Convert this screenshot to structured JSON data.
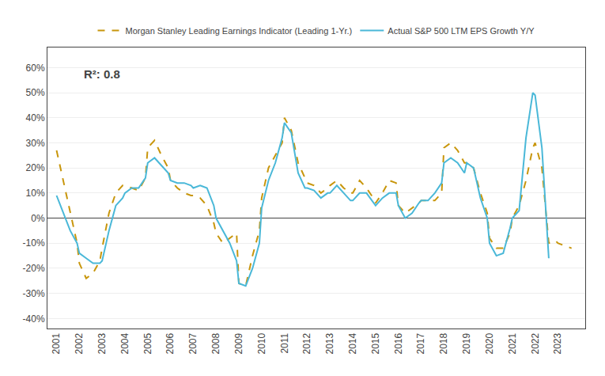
{
  "chart_data": {
    "type": "line",
    "annotation": "R²: 0.8",
    "grid": "y",
    "legend": "top",
    "xlim": [
      2000.6,
      2024.2
    ],
    "xticks": [
      2001,
      2002,
      2003,
      2004,
      2005,
      2006,
      2007,
      2008,
      2009,
      2010,
      2011,
      2012,
      2013,
      2014,
      2015,
      2016,
      2017,
      2018,
      2019,
      2020,
      2021,
      2022,
      2023
    ],
    "ylim": [
      -0.44,
      0.68
    ],
    "yticks": [
      {
        "value": -0.4,
        "label": "-40%"
      },
      {
        "value": -0.3,
        "label": "-30%"
      },
      {
        "value": -0.2,
        "label": "-20%"
      },
      {
        "value": -0.1,
        "label": "-10%"
      },
      {
        "value": 0.0,
        "label": "0%"
      },
      {
        "value": 0.1,
        "label": "10%"
      },
      {
        "value": 0.2,
        "label": "20%"
      },
      {
        "value": 0.3,
        "label": "30%"
      },
      {
        "value": 0.4,
        "label": "40%"
      },
      {
        "value": 0.5,
        "label": "50%"
      },
      {
        "value": 0.6,
        "label": "60%"
      }
    ],
    "series": [
      {
        "name": "Morgan Stanley Leading Earnings Indicator (Leading 1-Yr.)",
        "color": "#c8960c",
        "line_style": "dashed",
        "x": [
          2001.0,
          2001.3,
          2001.6,
          2001.9,
          2002.0,
          2002.3,
          2002.6,
          2002.9,
          2003.0,
          2003.3,
          2003.6,
          2003.9,
          2004.0,
          2004.3,
          2004.6,
          2004.9,
          2005.0,
          2005.3,
          2005.6,
          2005.9,
          2006.0,
          2006.3,
          2006.6,
          2006.9,
          2007.0,
          2007.3,
          2007.6,
          2007.9,
          2008.0,
          2008.3,
          2008.6,
          2008.9,
          2009.0,
          2009.3,
          2009.6,
          2009.9,
          2010.0,
          2010.3,
          2010.6,
          2010.9,
          2011.0,
          2011.3,
          2011.6,
          2011.9,
          2012.0,
          2012.3,
          2012.6,
          2012.9,
          2013.0,
          2013.3,
          2013.6,
          2013.9,
          2014.0,
          2014.3,
          2014.6,
          2014.9,
          2015.0,
          2015.3,
          2015.6,
          2015.9,
          2016.0,
          2016.3,
          2016.6,
          2016.9,
          2017.0,
          2017.3,
          2017.6,
          2017.9,
          2018.0,
          2018.3,
          2018.6,
          2018.9,
          2019.0,
          2019.3,
          2019.6,
          2019.9,
          2020.0,
          2020.3,
          2020.6,
          2020.9,
          2021.0,
          2021.3,
          2021.6,
          2021.9,
          2022.0,
          2022.3,
          2022.6,
          2022.9,
          2023.0,
          2023.3,
          2023.6
        ],
        "values": [
          0.27,
          0.15,
          0.02,
          -0.1,
          -0.18,
          -0.24,
          -0.22,
          -0.17,
          -0.12,
          0.02,
          0.1,
          0.13,
          0.13,
          0.12,
          0.11,
          0.16,
          0.28,
          0.31,
          0.25,
          0.2,
          0.15,
          0.12,
          0.1,
          0.09,
          0.09,
          0.08,
          0.05,
          -0.02,
          -0.06,
          -0.1,
          -0.08,
          -0.06,
          -0.26,
          -0.27,
          -0.15,
          -0.05,
          0.08,
          0.2,
          0.25,
          0.3,
          0.4,
          0.35,
          0.22,
          0.16,
          0.14,
          0.13,
          0.1,
          0.12,
          0.13,
          0.15,
          0.12,
          0.1,
          0.1,
          0.15,
          0.12,
          0.08,
          0.06,
          0.1,
          0.15,
          0.14,
          0.05,
          0.02,
          0.04,
          0.06,
          0.07,
          0.07,
          0.07,
          0.1,
          0.28,
          0.3,
          0.27,
          0.22,
          0.22,
          0.2,
          0.1,
          0.02,
          -0.08,
          -0.12,
          -0.12,
          -0.06,
          0.0,
          0.05,
          0.15,
          0.28,
          0.3,
          0.2,
          -0.1,
          -0.09,
          -0.1,
          -0.11,
          -0.12
        ]
      },
      {
        "name": "Actual S&P 500 LTM EPS Growth Y/Y",
        "color": "#4ab8d8",
        "line_style": "solid",
        "x": [
          2001.0,
          2001.3,
          2001.6,
          2001.9,
          2002.0,
          2002.3,
          2002.6,
          2002.9,
          2003.0,
          2003.3,
          2003.6,
          2003.9,
          2004.0,
          2004.3,
          2004.6,
          2004.9,
          2005.0,
          2005.3,
          2005.6,
          2005.9,
          2006.0,
          2006.3,
          2006.6,
          2006.9,
          2007.0,
          2007.3,
          2007.6,
          2007.9,
          2008.0,
          2008.3,
          2008.6,
          2008.9,
          2009.0,
          2009.3,
          2009.6,
          2009.9,
          2010.0,
          2010.3,
          2010.6,
          2010.9,
          2011.0,
          2011.3,
          2011.6,
          2011.9,
          2012.0,
          2012.3,
          2012.6,
          2012.9,
          2013.0,
          2013.3,
          2013.6,
          2013.9,
          2014.0,
          2014.3,
          2014.6,
          2014.9,
          2015.0,
          2015.3,
          2015.6,
          2015.9,
          2016.0,
          2016.3,
          2016.6,
          2016.9,
          2017.0,
          2017.3,
          2017.6,
          2017.9,
          2018.0,
          2018.3,
          2018.6,
          2018.9,
          2019.0,
          2019.3,
          2019.6,
          2019.9,
          2020.0,
          2020.3,
          2020.6,
          2020.9,
          2021.0,
          2021.3,
          2021.6,
          2021.9,
          2022.0,
          2022.3,
          2022.6
        ],
        "values": [
          0.09,
          0.02,
          -0.05,
          -0.1,
          -0.14,
          -0.16,
          -0.18,
          -0.18,
          -0.17,
          -0.05,
          0.05,
          0.08,
          0.1,
          0.12,
          0.12,
          0.16,
          0.22,
          0.24,
          0.21,
          0.18,
          0.15,
          0.14,
          0.14,
          0.13,
          0.12,
          0.13,
          0.12,
          0.05,
          0.0,
          -0.05,
          -0.1,
          -0.17,
          -0.26,
          -0.27,
          -0.2,
          -0.1,
          0.04,
          0.15,
          0.22,
          0.32,
          0.38,
          0.34,
          0.18,
          0.12,
          0.12,
          0.11,
          0.08,
          0.1,
          0.1,
          0.13,
          0.1,
          0.07,
          0.07,
          0.1,
          0.1,
          0.06,
          0.05,
          0.08,
          0.1,
          0.1,
          0.05,
          0.0,
          0.02,
          0.06,
          0.07,
          0.07,
          0.1,
          0.14,
          0.22,
          0.24,
          0.22,
          0.18,
          0.22,
          0.2,
          0.08,
          0.0,
          -0.1,
          -0.15,
          -0.14,
          -0.04,
          0.0,
          0.03,
          0.32,
          0.5,
          0.49,
          0.28,
          -0.16
        ]
      }
    ]
  }
}
